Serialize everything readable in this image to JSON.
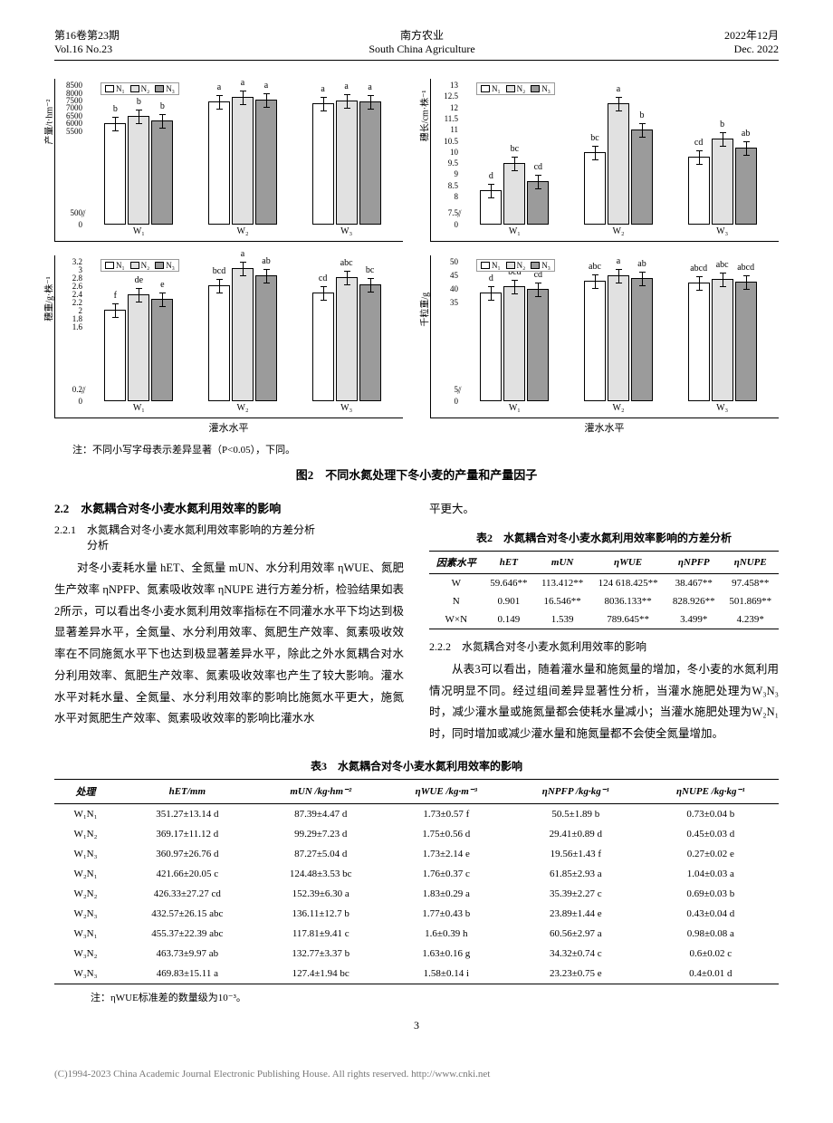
{
  "header": {
    "issue_cn": "第16卷第23期",
    "issue_en": "Vol.16 No.23",
    "journal_cn": "南方农业",
    "journal_en": "South China Agriculture",
    "date_cn": "2022年12月",
    "date_en": "Dec. 2022"
  },
  "charts": {
    "legend": [
      "N₁",
      "N₂",
      "N₃"
    ],
    "colors": [
      "#ffffff",
      "#e1e1e1",
      "#9b9b9b"
    ],
    "xcats": [
      "W₁",
      "W₂",
      "W₃"
    ],
    "c1": {
      "ylabel": "产量/t·hm⁻²",
      "yticks": [
        0,
        500,
        5500,
        6000,
        6500,
        7000,
        7500,
        8000,
        8500
      ],
      "groups": [
        {
          "vals": [
            6000,
            6480,
            6200
          ],
          "lbls": [
            "b",
            "b",
            "b"
          ]
        },
        {
          "vals": [
            7430,
            7740,
            7580
          ],
          "lbls": [
            "a",
            "a",
            "a"
          ]
        },
        {
          "vals": [
            7300,
            7490,
            7430
          ],
          "lbls": [
            "a",
            "a",
            "a"
          ]
        }
      ]
    },
    "c2": {
      "ylabel": "穗长/cm·株⁻¹",
      "yticks": [
        0,
        7.5,
        8.0,
        8.5,
        9.0,
        9.5,
        10.0,
        10.5,
        11.0,
        11.5,
        12.0,
        12.5,
        13.0
      ],
      "groups": [
        {
          "vals": [
            8.3,
            9.5,
            8.7
          ],
          "lbls": [
            "d",
            "bc",
            "cd"
          ]
        },
        {
          "vals": [
            10.0,
            12.2,
            11.0
          ],
          "lbls": [
            "bc",
            "a",
            "b"
          ]
        },
        {
          "vals": [
            9.8,
            10.6,
            10.2
          ],
          "lbls": [
            "cd",
            "b",
            "ab"
          ]
        }
      ]
    },
    "c3": {
      "ylabel": "穗重/g·株⁻¹",
      "yticks": [
        0,
        0.2,
        1.6,
        1.8,
        2.0,
        2.2,
        2.4,
        2.6,
        2.8,
        3.0,
        3.2
      ],
      "groups": [
        {
          "vals": [
            2.03,
            2.41,
            2.3
          ],
          "lbls": [
            "f",
            "de",
            "e"
          ]
        },
        {
          "vals": [
            2.62,
            3.05,
            2.86
          ],
          "lbls": [
            "bcd",
            "a",
            "ab"
          ]
        },
        {
          "vals": [
            2.45,
            2.82,
            2.65
          ],
          "lbls": [
            "cd",
            "abc",
            "bc"
          ]
        }
      ]
    },
    "c4": {
      "ylabel": "千粒重/g",
      "yticks": [
        0,
        5.0,
        35.0,
        40.0,
        45.0,
        50.0
      ],
      "groups": [
        {
          "vals": [
            38.8,
            41.2,
            40.0
          ],
          "lbls": [
            "d",
            "bcd",
            "cd"
          ]
        },
        {
          "vals": [
            43.0,
            45.2,
            44.1
          ],
          "lbls": [
            "abc",
            "a",
            "ab"
          ]
        },
        {
          "vals": [
            42.3,
            43.6,
            42.8
          ],
          "lbls": [
            "abcd",
            "abc",
            "abcd"
          ]
        }
      ]
    },
    "xaxis_label": "灌水水平",
    "note": "注：不同小写字母表示差异显著（P<0.05），下同。",
    "caption": "图2　不同水氮处理下冬小麦的产量和产量因子"
  },
  "sec22": {
    "title": "2.2　水氮耦合对冬小麦水氮利用效率的影响"
  },
  "sec221": {
    "title": "2.2.1　水氮耦合对冬小麦水氮利用效率影响的方差分析",
    "indent": "分析",
    "p1": "对冬小麦耗水量 hET、全氮量 mUN、水分利用效率 ηWUE、氮肥生产效率 ηNPFP、氮素吸收效率 ηNUPE 进行方差分析，检验结果如表2所示，可以看出冬小麦水氮利用效率指标在不同灌水水平下均达到极显著差异水平，全氮量、水分利用效率、氮肥生产效率、氮素吸收效率在不同施氮水平下也达到极显著差异水平，除此之外水氮耦合对水分利用效率、氮肥生产效率、氮素吸收效率也产生了较大影响。灌水水平对耗水量、全氮量、水分利用效率的影响比施氮水平更大，施氮水平对氮肥生产效率、氮素吸收效率的影响比灌水水"
  },
  "colbreak": "平更大。",
  "table2": {
    "caption": "表2　水氮耦合对冬小麦水氮利用效率影响的方差分析",
    "headers": [
      "因素水平",
      "hET",
      "mUN",
      "ηWUE",
      "ηNPFP",
      "ηNUPE"
    ],
    "rows": [
      [
        "W",
        "59.646**",
        "113.412**",
        "124 618.425**",
        "38.467**",
        "97.458**"
      ],
      [
        "N",
        "0.901",
        "16.546**",
        "8036.133**",
        "828.926**",
        "501.869**"
      ],
      [
        "W×N",
        "0.149",
        "1.539",
        "789.645**",
        "3.499*",
        "4.239*"
      ]
    ]
  },
  "sec222": {
    "title": "2.2.2　水氮耦合对冬小麦水氮利用效率的影响",
    "p1": "从表3可以看出，随着灌水量和施氮量的增加，冬小麦的水氮利用情况明显不同。经过组间差异显著性分析，当灌水施肥处理为W₃N₃时，减少灌水量或施氮量都会使耗水量减小；当灌水施肥处理为W₂N₁时，同时增加或减少灌水量和施氮量都不会使全氮量增加。"
  },
  "table3": {
    "caption": "表3　水氮耦合对冬小麦水氮利用效率的影响",
    "headers": [
      "处理",
      "hET/mm",
      "mUN /kg·hm⁻²",
      "ηWUE /kg·m⁻³",
      "ηNPFP /kg·kg⁻¹",
      "ηNUPE /kg·kg⁻¹"
    ],
    "rows": [
      [
        "W₁N₁",
        "351.27±13.14 d",
        "87.39±4.47 d",
        "1.73±0.57 f",
        "50.5±1.89 b",
        "0.73±0.04 b"
      ],
      [
        "W₁N₂",
        "369.17±11.12 d",
        "99.29±7.23 d",
        "1.75±0.56 d",
        "29.41±0.89 d",
        "0.45±0.03 d"
      ],
      [
        "W₁N₃",
        "360.97±26.76 d",
        "87.27±5.04 d",
        "1.73±2.14 e",
        "19.56±1.43 f",
        "0.27±0.02 e"
      ],
      [
        "W₂N₁",
        "421.66±20.05 c",
        "124.48±3.53 bc",
        "1.76±0.37 c",
        "61.85±2.93 a",
        "1.04±0.03 a"
      ],
      [
        "W₂N₂",
        "426.33±27.27 cd",
        "152.39±6.30 a",
        "1.83±0.29 a",
        "35.39±2.27 c",
        "0.69±0.03 b"
      ],
      [
        "W₂N₃",
        "432.57±26.15 abc",
        "136.11±12.7 b",
        "1.77±0.43 b",
        "23.89±1.44 e",
        "0.43±0.04 d"
      ],
      [
        "W₃N₁",
        "455.37±22.39 abc",
        "117.81±9.41 c",
        "1.6±0.39 h",
        "60.56±2.97 a",
        "0.98±0.08 a"
      ],
      [
        "W₃N₂",
        "463.73±9.97 ab",
        "132.77±3.37 b",
        "1.63±0.16 g",
        "34.32±0.74 c",
        "0.6±0.02 c"
      ],
      [
        "W₃N₃",
        "469.83±15.11 a",
        "127.4±1.94 bc",
        "1.58±0.14 i",
        "23.23±0.75 e",
        "0.4±0.01 d"
      ]
    ],
    "note": "注：ηWUE标准差的数量级为10⁻³。"
  },
  "page": "3",
  "footer": "(C)1994-2023 China Academic Journal Electronic Publishing House. All rights reserved.    http://www.cnki.net"
}
